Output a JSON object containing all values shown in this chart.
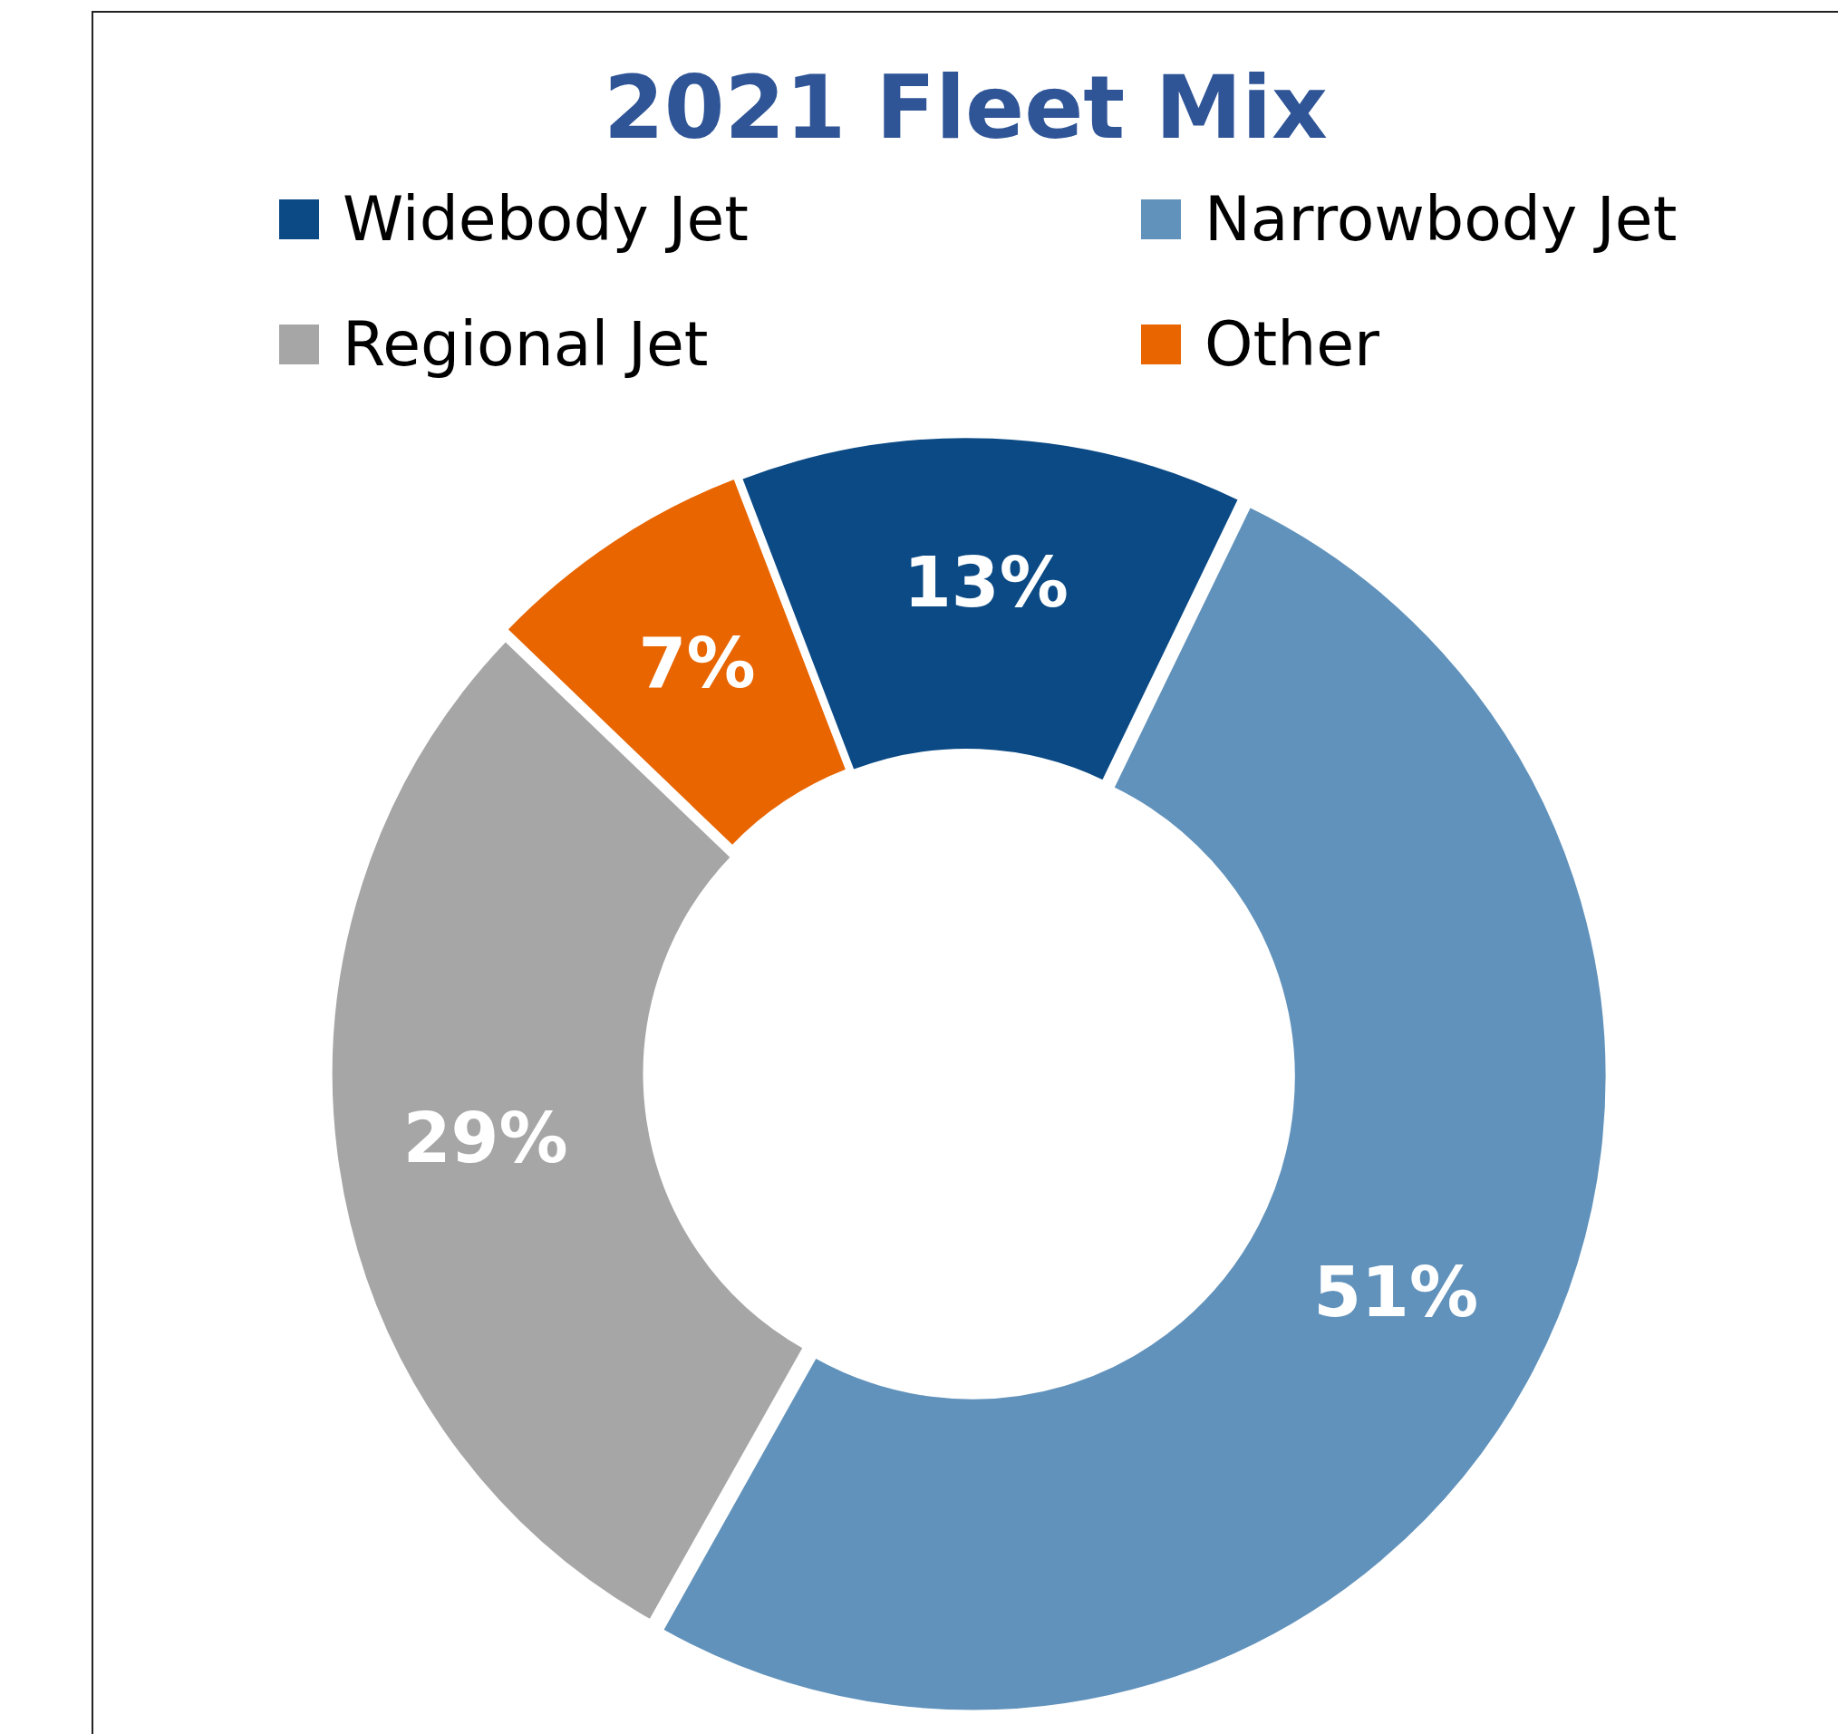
{
  "chart_data": {
    "type": "donut",
    "title": "2021 Fleet Mix",
    "categories": [
      "Widebody Jet",
      "Narrowbody Jet",
      "Regional Jet",
      "Other"
    ],
    "values": [
      13,
      51,
      29,
      7
    ],
    "colors": [
      "#0b4a85",
      "#6192bb",
      "#a6a6a6",
      "#e86500"
    ],
    "value_labels": [
      "13%",
      "51%",
      "29%",
      "7%"
    ],
    "legend": "top"
  }
}
